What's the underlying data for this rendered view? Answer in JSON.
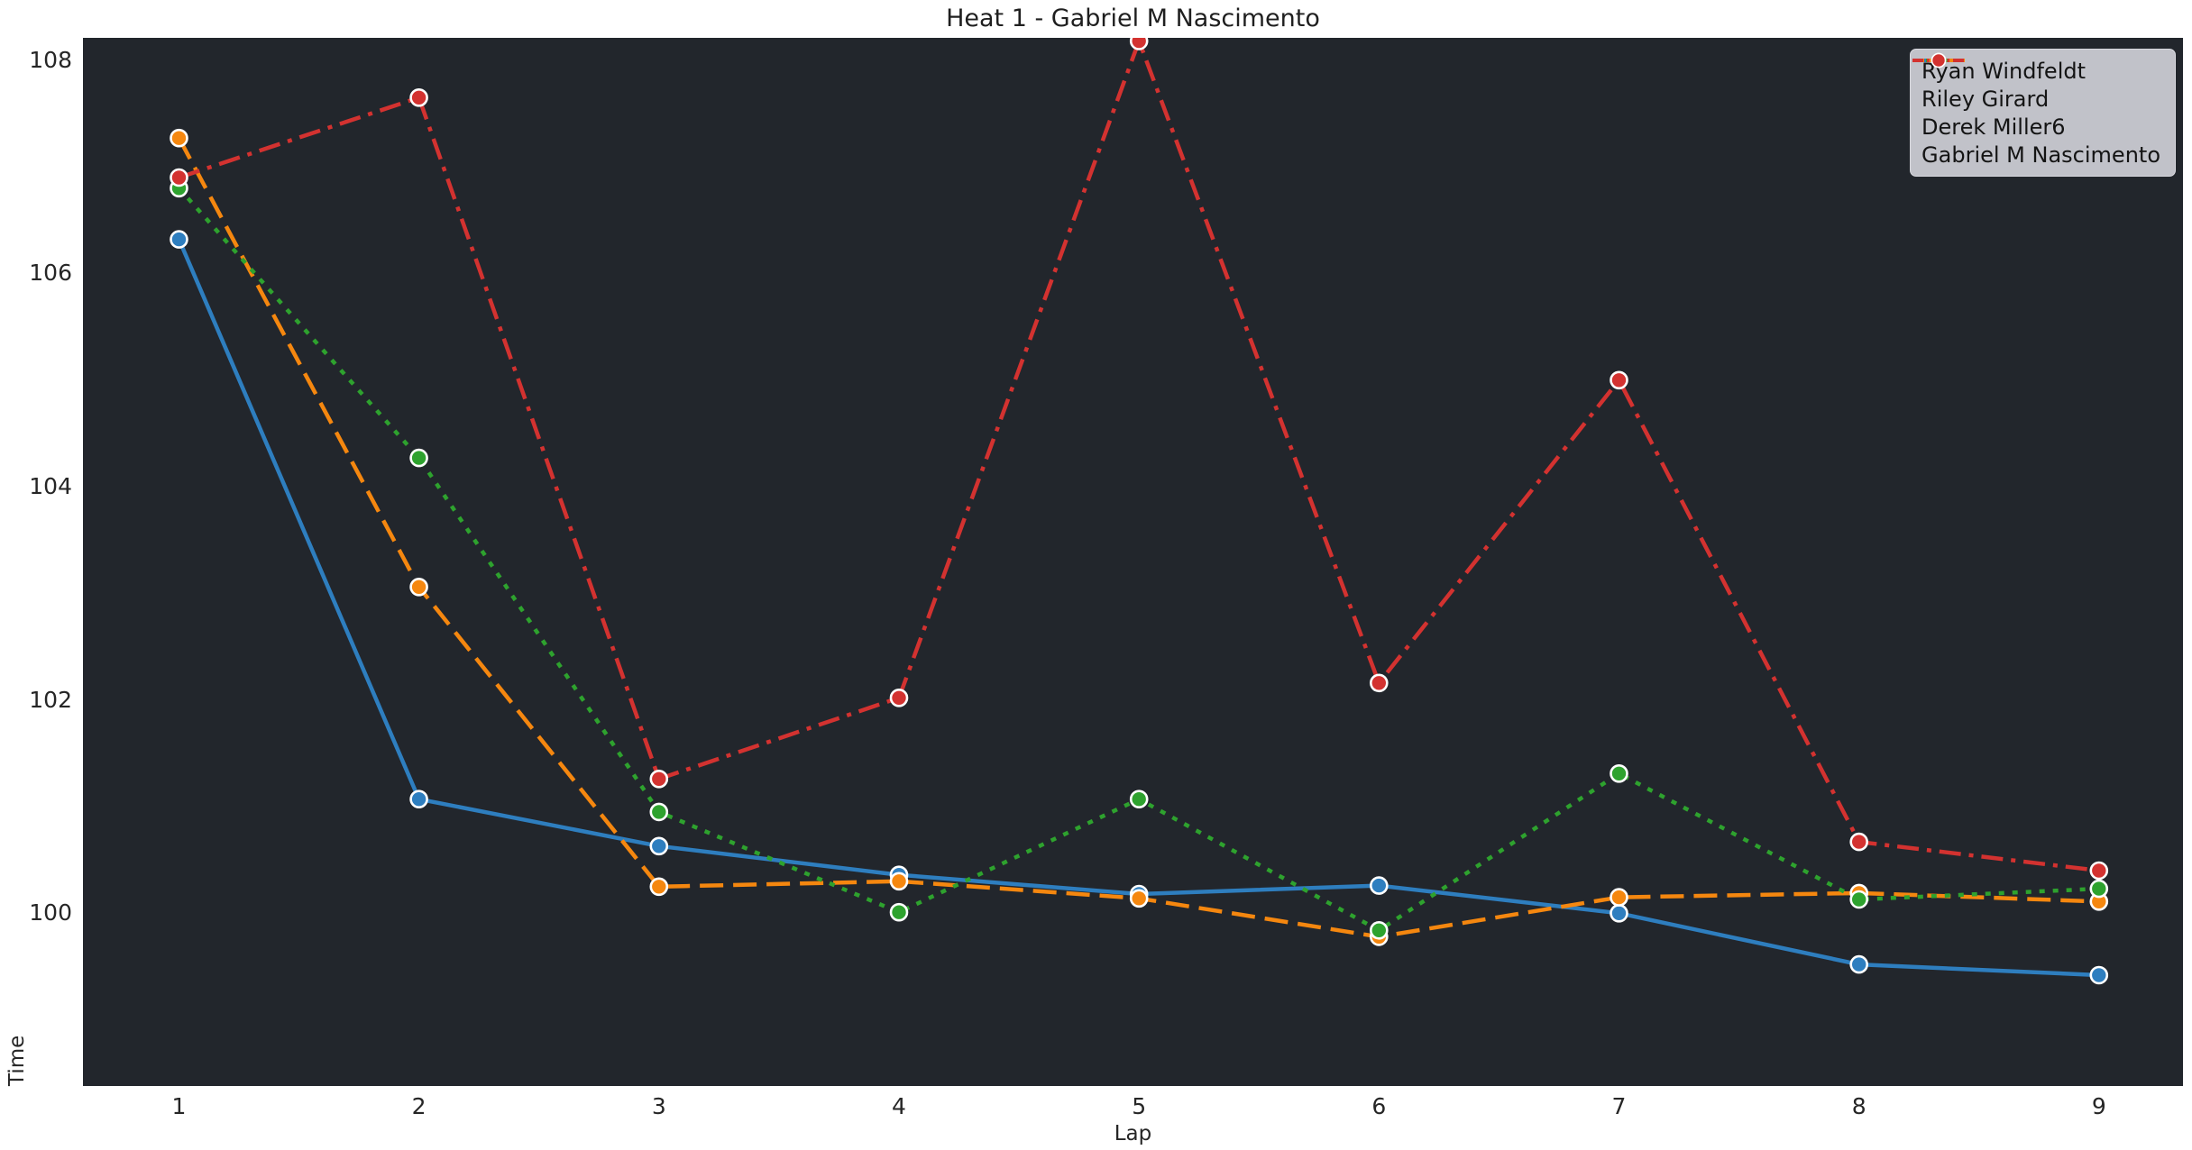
{
  "chart_data": {
    "type": "line",
    "title": "Heat 1 - Gabriel M Nascimento",
    "xlabel": "Lap",
    "ylabel": "Time",
    "x": [
      1,
      2,
      3,
      4,
      5,
      6,
      7,
      8,
      9
    ],
    "xlim": [
      0.6,
      9.35
    ],
    "ylim": [
      98.38,
      108.21
    ],
    "yticks": [
      100,
      102,
      104,
      106,
      108
    ],
    "grid": false,
    "legend_position": "upper right",
    "plot_background": "#22262c",
    "figure_background": "#ffffff",
    "marker": "circle",
    "series": [
      {
        "name": "Ryan Windfeldt",
        "color": "#2e7ebf",
        "linestyle": "solid",
        "values": [
          106.32,
          101.07,
          100.63,
          100.36,
          100.18,
          100.26,
          100.0,
          99.52,
          99.42
        ]
      },
      {
        "name": "Riley Girard",
        "color": "#f5870f",
        "linestyle": "dashed",
        "values": [
          107.27,
          103.06,
          100.25,
          100.3,
          100.14,
          99.78,
          100.15,
          100.19,
          100.11
        ]
      },
      {
        "name": "Derek Miller6",
        "color": "#2ea22e",
        "linestyle": "dotted",
        "values": [
          106.8,
          104.27,
          100.95,
          100.01,
          101.07,
          99.84,
          101.31,
          100.13,
          100.23
        ]
      },
      {
        "name": "Gabriel M Nascimento",
        "color": "#d33230",
        "linestyle": "dashdot",
        "values": [
          106.9,
          107.65,
          101.26,
          102.02,
          108.18,
          102.16,
          105.0,
          100.67,
          100.4
        ]
      }
    ]
  }
}
